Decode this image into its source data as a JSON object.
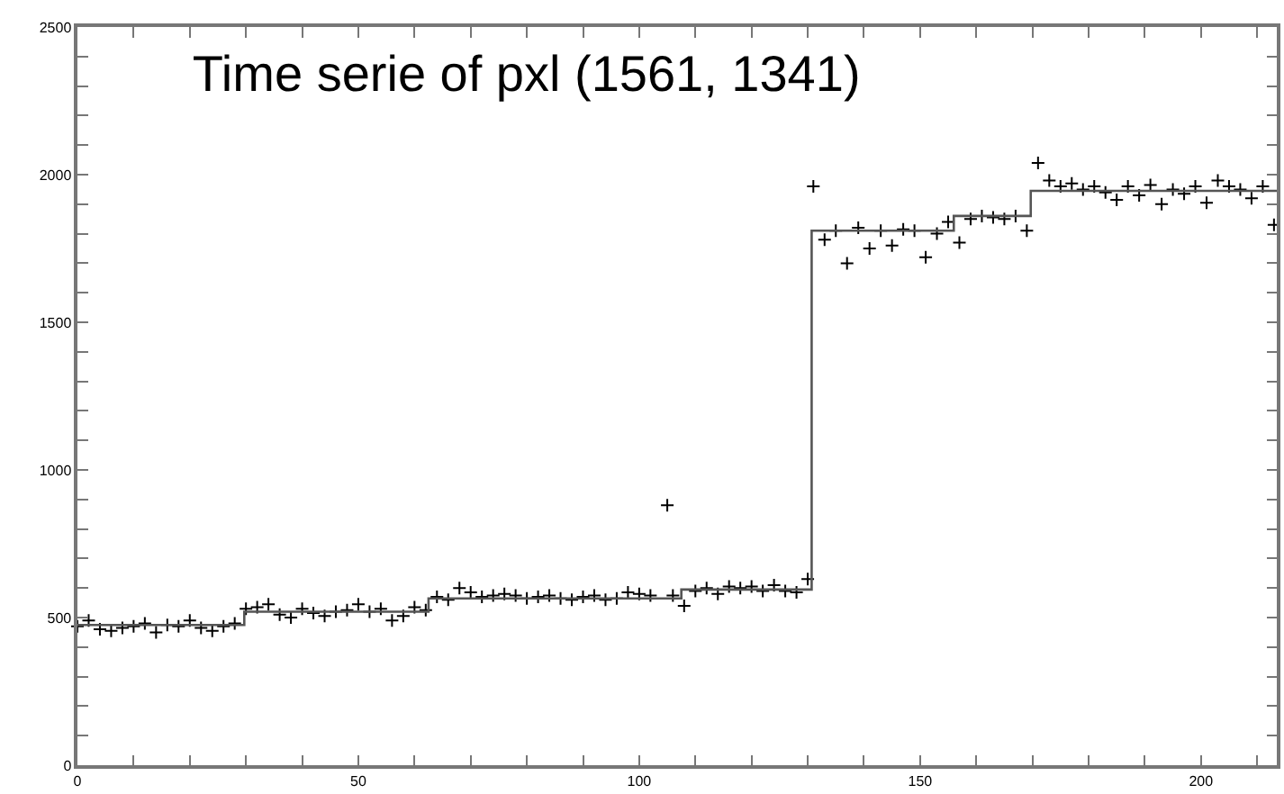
{
  "chart_data": {
    "type": "scatter",
    "title": "Time serie of pxl (1561, 1341)",
    "xlim": [
      0,
      213.5
    ],
    "ylim": [
      0,
      2500
    ],
    "xticks": [
      0,
      {
        "value": 10,
        "label": null
      },
      {
        "value": 20,
        "label": null
      },
      {
        "value": 30,
        "label": null
      },
      {
        "value": 40,
        "label": null
      },
      50,
      {
        "value": 60,
        "label": null
      },
      {
        "value": 70,
        "label": null
      },
      {
        "value": 80,
        "label": null
      },
      {
        "value": 90,
        "label": null
      },
      100,
      {
        "value": 110,
        "label": null
      },
      {
        "value": 120,
        "label": null
      },
      {
        "value": 130,
        "label": null
      },
      {
        "value": 140,
        "label": null
      },
      150,
      {
        "value": 160,
        "label": null
      },
      {
        "value": 170,
        "label": null
      },
      {
        "value": 180,
        "label": null
      },
      {
        "value": 190,
        "label": null
      },
      200,
      {
        "value": 210,
        "label": null
      }
    ],
    "yticks": [
      0,
      {
        "value": 100,
        "label": null
      },
      {
        "value": 200,
        "label": null
      },
      {
        "value": 300,
        "label": null
      },
      {
        "value": 400,
        "label": null
      },
      500,
      {
        "value": 600,
        "label": null
      },
      {
        "value": 700,
        "label": null
      },
      {
        "value": 800,
        "label": null
      },
      {
        "value": 900,
        "label": null
      },
      1000,
      {
        "value": 1100,
        "label": null
      },
      {
        "value": 1200,
        "label": null
      },
      {
        "value": 1300,
        "label": null
      },
      {
        "value": 1400,
        "label": null
      },
      1500,
      {
        "value": 1600,
        "label": null
      },
      {
        "value": 1700,
        "label": null
      },
      {
        "value": 1800,
        "label": null
      },
      {
        "value": 1900,
        "label": null
      },
      2000,
      {
        "value": 2100,
        "label": null
      },
      {
        "value": 2200,
        "label": null
      },
      {
        "value": 2300,
        "label": null
      },
      {
        "value": 2400,
        "label": null
      },
      2500
    ],
    "legend": false,
    "series": [
      {
        "marker": "cross",
        "color": "#000000",
        "x": [
          0,
          2,
          4,
          6,
          8,
          10,
          12,
          14,
          16,
          18,
          20,
          22,
          24,
          26,
          28,
          30,
          32,
          34,
          36,
          38,
          40,
          42,
          44,
          46,
          48,
          50,
          52,
          54,
          56,
          58,
          60,
          62,
          64,
          66,
          68,
          70,
          72,
          74,
          76,
          78,
          80,
          82,
          84,
          86,
          88,
          90,
          92,
          94,
          96,
          98,
          100,
          102,
          105,
          106,
          108,
          110,
          112,
          114,
          116,
          118,
          120,
          122,
          124,
          126,
          128,
          130,
          131,
          133,
          135,
          137,
          139,
          141,
          143,
          145,
          147,
          149,
          151,
          153,
          155,
          157,
          159,
          161,
          163,
          165,
          167,
          169,
          171,
          173,
          175,
          177,
          179,
          181,
          183,
          185,
          187,
          189,
          191,
          193,
          195,
          197,
          199,
          201,
          203,
          205,
          207,
          209,
          211,
          213
        ],
        "values": [
          470,
          490,
          460,
          455,
          465,
          470,
          480,
          450,
          475,
          470,
          490,
          465,
          455,
          470,
          480,
          530,
          535,
          545,
          510,
          500,
          530,
          515,
          505,
          520,
          525,
          545,
          520,
          530,
          490,
          505,
          535,
          525,
          570,
          560,
          600,
          585,
          570,
          575,
          580,
          575,
          565,
          570,
          575,
          565,
          560,
          570,
          575,
          560,
          565,
          585,
          580,
          575,
          880,
          575,
          540,
          590,
          600,
          580,
          605,
          600,
          605,
          590,
          610,
          590,
          585,
          630,
          1960,
          1780,
          1810,
          1700,
          1820,
          1750,
          1810,
          1760,
          1815,
          1810,
          1720,
          1800,
          1840,
          1770,
          1850,
          1860,
          1855,
          1850,
          1860,
          1810,
          2040,
          1980,
          1960,
          1970,
          1950,
          1960,
          1940,
          1915,
          1960,
          1930,
          1965,
          1900,
          1950,
          1935,
          1960,
          1905,
          1980,
          1960,
          1950,
          1920,
          1960,
          1830
        ]
      },
      {
        "type": "step",
        "marker": "none",
        "color": "#555555",
        "x": [
          0,
          29.7,
          62.5,
          107.5,
          130.7,
          156,
          169.7,
          213.5
        ],
        "values": [
          475,
          520,
          565,
          595,
          1810,
          1860,
          1945,
          1945
        ]
      }
    ]
  }
}
